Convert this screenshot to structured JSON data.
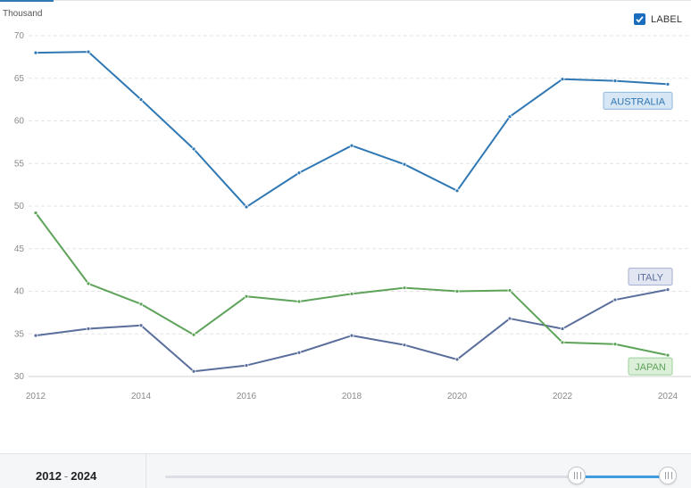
{
  "unit_label": "Thousand",
  "label_toggle": {
    "text": "LABEL",
    "checked": true
  },
  "range": {
    "start": "2012",
    "end": "2024"
  },
  "chart_data": {
    "type": "line",
    "title": "",
    "xlabel": "",
    "ylabel": "Thousand",
    "x": [
      2012,
      2013,
      2014,
      2015,
      2016,
      2017,
      2018,
      2019,
      2020,
      2021,
      2022,
      2023,
      2024
    ],
    "x_ticks": [
      2012,
      2014,
      2016,
      2018,
      2020,
      2022,
      2024
    ],
    "ylim": [
      30,
      70
    ],
    "y_ticks": [
      30,
      35,
      40,
      45,
      50,
      55,
      60,
      65,
      70
    ],
    "grid": true,
    "series": [
      {
        "name": "AUSTRALIA",
        "color": "#2f78b4",
        "label_bg": "#d6e6f5",
        "label_border": "#8fb8de",
        "values": [
          68.0,
          68.1,
          62.5,
          56.7,
          49.9,
          53.9,
          57.1,
          54.9,
          51.8,
          60.5,
          64.9,
          64.7,
          64.3
        ]
      },
      {
        "name": "ITALY",
        "color": "#5a6e9c",
        "label_bg": "#e2e6f2",
        "label_border": "#a3adcf",
        "values": [
          34.8,
          35.6,
          36.0,
          30.6,
          31.3,
          32.8,
          34.8,
          33.7,
          32.0,
          36.8,
          35.6,
          39.0,
          40.2
        ]
      },
      {
        "name": "JAPAN",
        "color": "#5ea35a",
        "label_bg": "#dcefd9",
        "label_border": "#9cd09a",
        "values": [
          49.2,
          40.9,
          38.5,
          34.9,
          39.4,
          38.8,
          39.7,
          40.4,
          40.0,
          40.1,
          34.0,
          33.8,
          32.5
        ]
      }
    ]
  }
}
